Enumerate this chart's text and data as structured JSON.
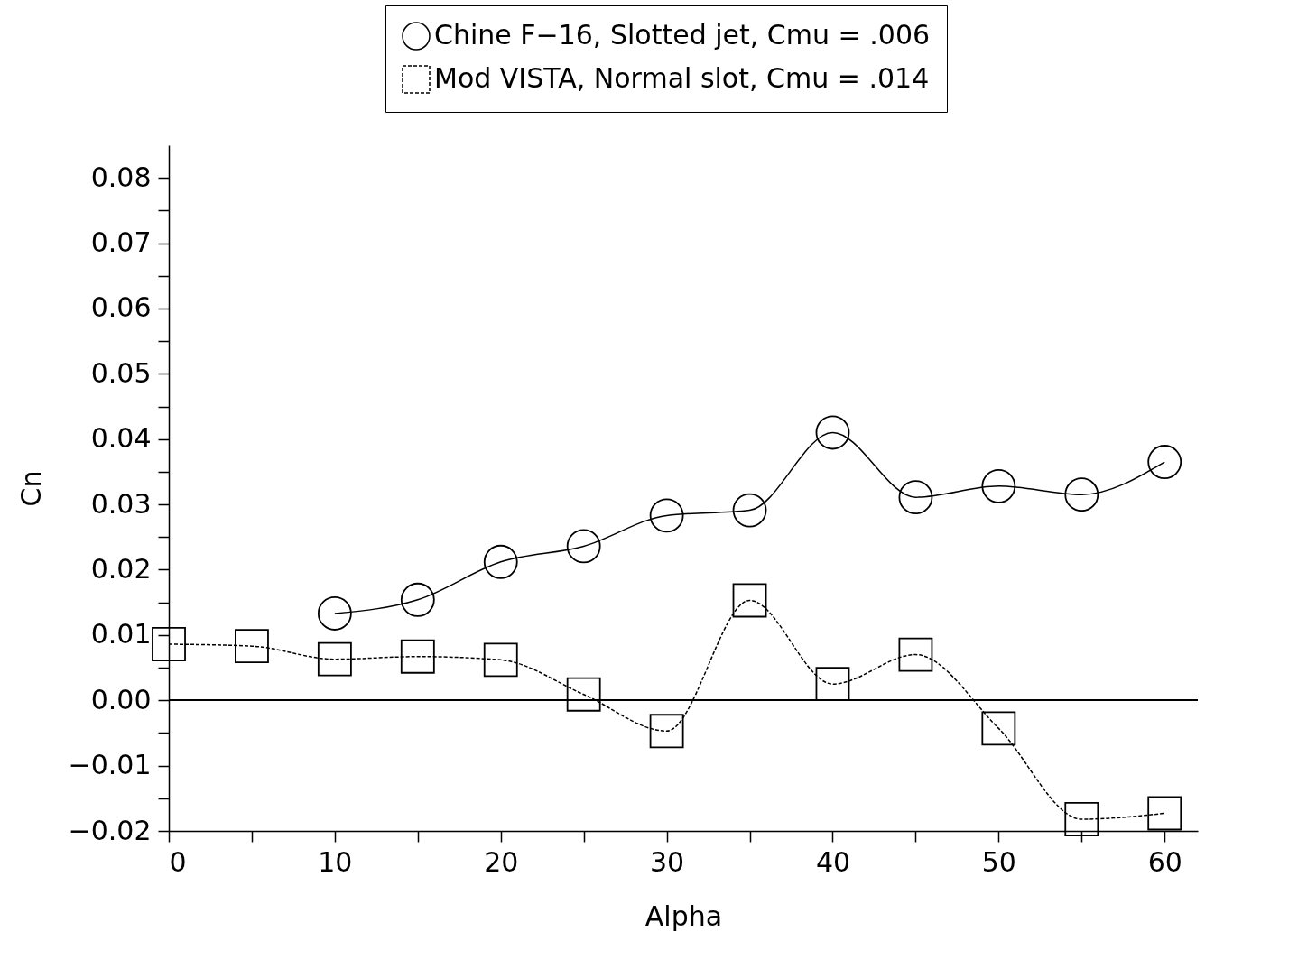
{
  "chart_data": {
    "type": "line",
    "xlabel": "Alpha",
    "ylabel": "Cn",
    "xlim": [
      0,
      62
    ],
    "xticks": [
      0,
      {
        "value": 5,
        "label": null
      },
      10,
      {
        "value": 15,
        "label": null
      },
      20,
      {
        "value": 25,
        "label": null
      },
      30,
      {
        "value": 35,
        "label": null
      },
      40,
      {
        "value": 45,
        "label": null
      },
      50,
      {
        "value": 55,
        "label": null
      },
      60
    ],
    "ylim": [
      -0.02,
      0.085
    ],
    "yticks": [
      -0.02,
      {
        "value": -0.015,
        "label": null
      },
      -0.01,
      {
        "value": -0.005,
        "label": null
      },
      {
        "value": 0,
        "label": "0.00"
      },
      {
        "value": 0.005,
        "label": null
      },
      0.01,
      {
        "value": 0.015,
        "label": null
      },
      0.02,
      {
        "value": 0.025,
        "label": null
      },
      0.03,
      {
        "value": 0.035,
        "label": null
      },
      0.04,
      {
        "value": 0.045,
        "label": null
      },
      0.05,
      {
        "value": 0.055,
        "label": null
      },
      0.06,
      {
        "value": 0.065,
        "label": null
      },
      0.07,
      {
        "value": 0.075,
        "label": null
      },
      0.08
    ],
    "grid": false,
    "legend": "top right",
    "ref_lines": [
      {
        "axis": "y",
        "value": 0,
        "color": "#000000",
        "line_style": "solid"
      }
    ],
    "series": [
      {
        "name": "Chine F−16, Slotted jet, Cmu = .006",
        "color": "#000000",
        "marker": "circle",
        "line_style": "solid",
        "x": [
          10,
          15,
          20,
          25,
          30,
          35,
          40,
          45,
          50,
          55,
          60
        ],
        "values": [
          0.0133,
          0.0154,
          0.0212,
          0.0236,
          0.0283,
          0.0291,
          0.041,
          0.0311,
          0.0328,
          0.0315,
          0.0365
        ]
      },
      {
        "name": "Mod VISTA, Normal slot, Cmu = .014",
        "color": "#000000",
        "marker": "square",
        "line_style": "dashed",
        "x": [
          0,
          5,
          10,
          15,
          20,
          25,
          30,
          35,
          40,
          45,
          50,
          55,
          60
        ],
        "values": [
          0.0086,
          0.0083,
          0.0063,
          0.0067,
          0.0062,
          0.0009,
          -0.0047,
          0.0153,
          0.0025,
          0.007,
          -0.0043,
          -0.0182,
          -0.0173
        ]
      }
    ]
  }
}
